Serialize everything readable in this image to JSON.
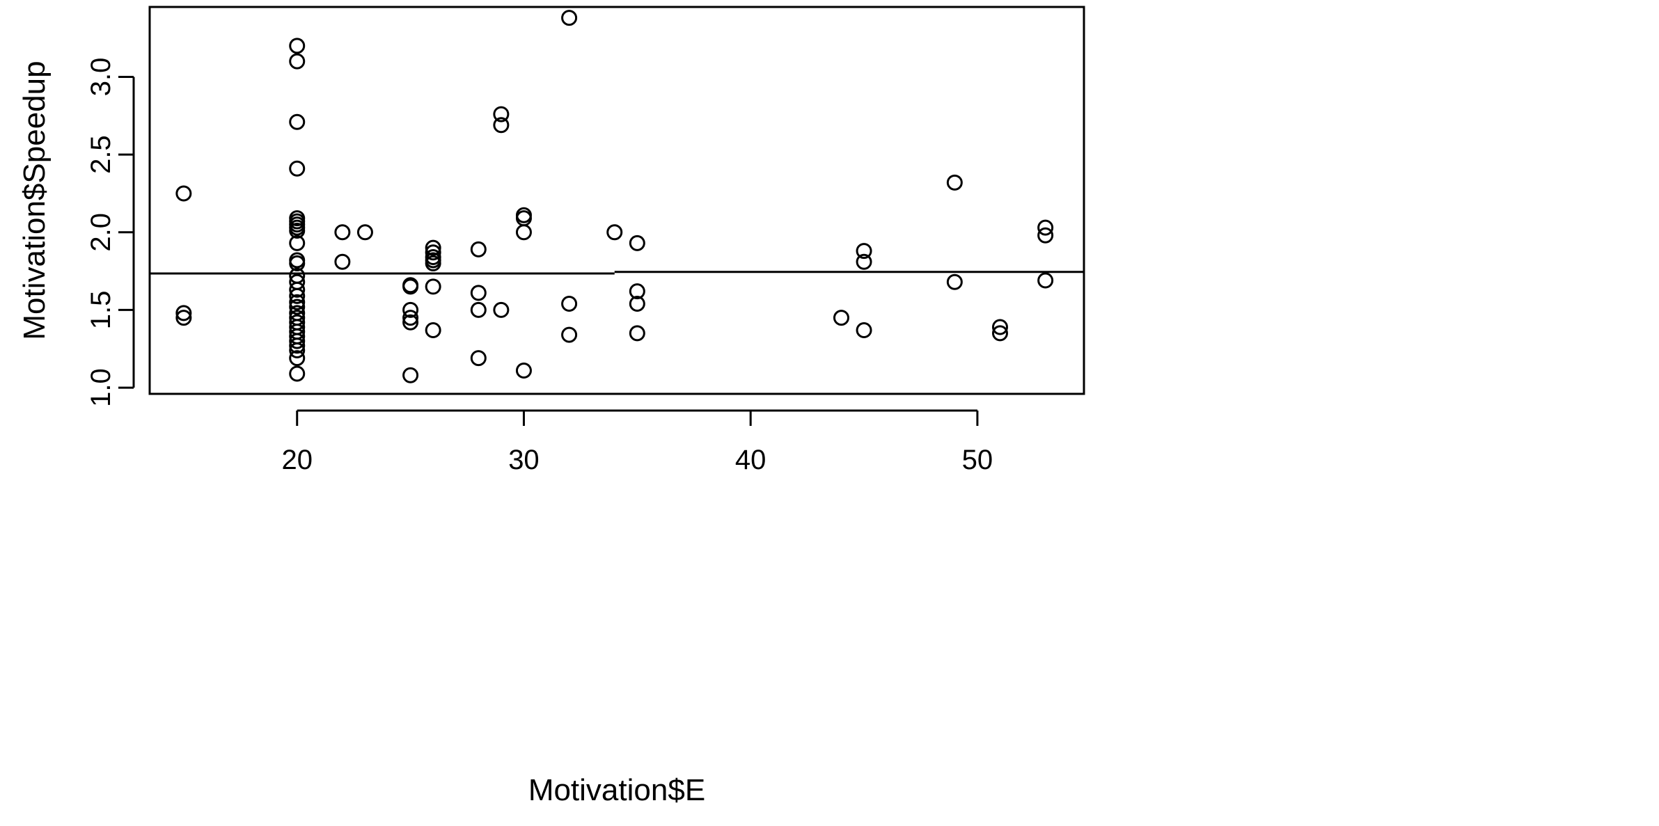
{
  "chart_data": {
    "type": "scatter",
    "title": "",
    "xlabel": "Motivation$E",
    "ylabel": "Motivation$Speedup",
    "xlim": [
      13.5,
      54.7
    ],
    "ylim": [
      0.96,
      3.45
    ],
    "xticks": [
      20,
      30,
      40,
      50
    ],
    "yticks": [
      1.0,
      1.5,
      2.0,
      2.5,
      3.0
    ],
    "xtick_labels": [
      "20",
      "30",
      "40",
      "50"
    ],
    "ytick_labels": [
      "1.0",
      "1.5",
      "2.0",
      "2.5",
      "3.0"
    ],
    "grid": false,
    "legend": "none",
    "point_style": "open-circle",
    "points": [
      [
        15,
        2.25
      ],
      [
        15,
        1.48
      ],
      [
        15,
        1.45
      ],
      [
        20,
        3.2
      ],
      [
        20,
        3.1
      ],
      [
        20,
        2.71
      ],
      [
        20,
        2.41
      ],
      [
        20,
        2.09
      ],
      [
        20,
        2.07
      ],
      [
        20,
        2.05
      ],
      [
        20,
        2.03
      ],
      [
        20,
        2.01
      ],
      [
        20,
        1.93
      ],
      [
        20,
        1.82
      ],
      [
        20,
        1.8
      ],
      [
        20,
        1.72
      ],
      [
        20,
        1.68
      ],
      [
        20,
        1.63
      ],
      [
        20,
        1.59
      ],
      [
        20,
        1.55
      ],
      [
        20,
        1.52
      ],
      [
        20,
        1.48
      ],
      [
        20,
        1.45
      ],
      [
        20,
        1.42
      ],
      [
        20,
        1.39
      ],
      [
        20,
        1.36
      ],
      [
        20,
        1.33
      ],
      [
        20,
        1.3
      ],
      [
        20,
        1.27
      ],
      [
        20,
        1.24
      ],
      [
        20,
        1.19
      ],
      [
        20,
        1.09
      ],
      [
        22,
        2.0
      ],
      [
        22,
        1.81
      ],
      [
        23,
        2.0
      ],
      [
        25,
        1.66
      ],
      [
        25,
        1.65
      ],
      [
        25,
        1.5
      ],
      [
        25,
        1.45
      ],
      [
        25,
        1.42
      ],
      [
        25,
        1.08
      ],
      [
        26,
        1.9
      ],
      [
        26,
        1.87
      ],
      [
        26,
        1.84
      ],
      [
        26,
        1.82
      ],
      [
        26,
        1.8
      ],
      [
        26,
        1.65
      ],
      [
        26,
        1.37
      ],
      [
        28,
        1.89
      ],
      [
        28,
        1.61
      ],
      [
        28,
        1.5
      ],
      [
        28,
        1.19
      ],
      [
        29,
        2.76
      ],
      [
        29,
        2.69
      ],
      [
        29,
        1.5
      ],
      [
        30,
        2.11
      ],
      [
        30,
        2.09
      ],
      [
        30,
        2.0
      ],
      [
        30,
        1.11
      ],
      [
        32,
        3.38
      ],
      [
        32,
        1.54
      ],
      [
        32,
        1.34
      ],
      [
        34,
        2.0
      ],
      [
        35,
        1.93
      ],
      [
        35,
        1.62
      ],
      [
        35,
        1.54
      ],
      [
        35,
        1.35
      ],
      [
        44,
        1.45
      ],
      [
        45,
        1.88
      ],
      [
        45,
        1.81
      ],
      [
        45,
        1.37
      ],
      [
        49,
        2.32
      ],
      [
        49,
        1.68
      ],
      [
        51,
        1.39
      ],
      [
        51,
        1.35
      ],
      [
        53,
        2.03
      ],
      [
        53,
        1.98
      ],
      [
        53,
        1.69
      ]
    ],
    "lines": [
      {
        "x": [
          13.5,
          34
        ],
        "y": [
          1.735,
          1.735
        ]
      },
      {
        "x": [
          34,
          54.7
        ],
        "y": [
          1.745,
          1.745
        ]
      }
    ]
  }
}
